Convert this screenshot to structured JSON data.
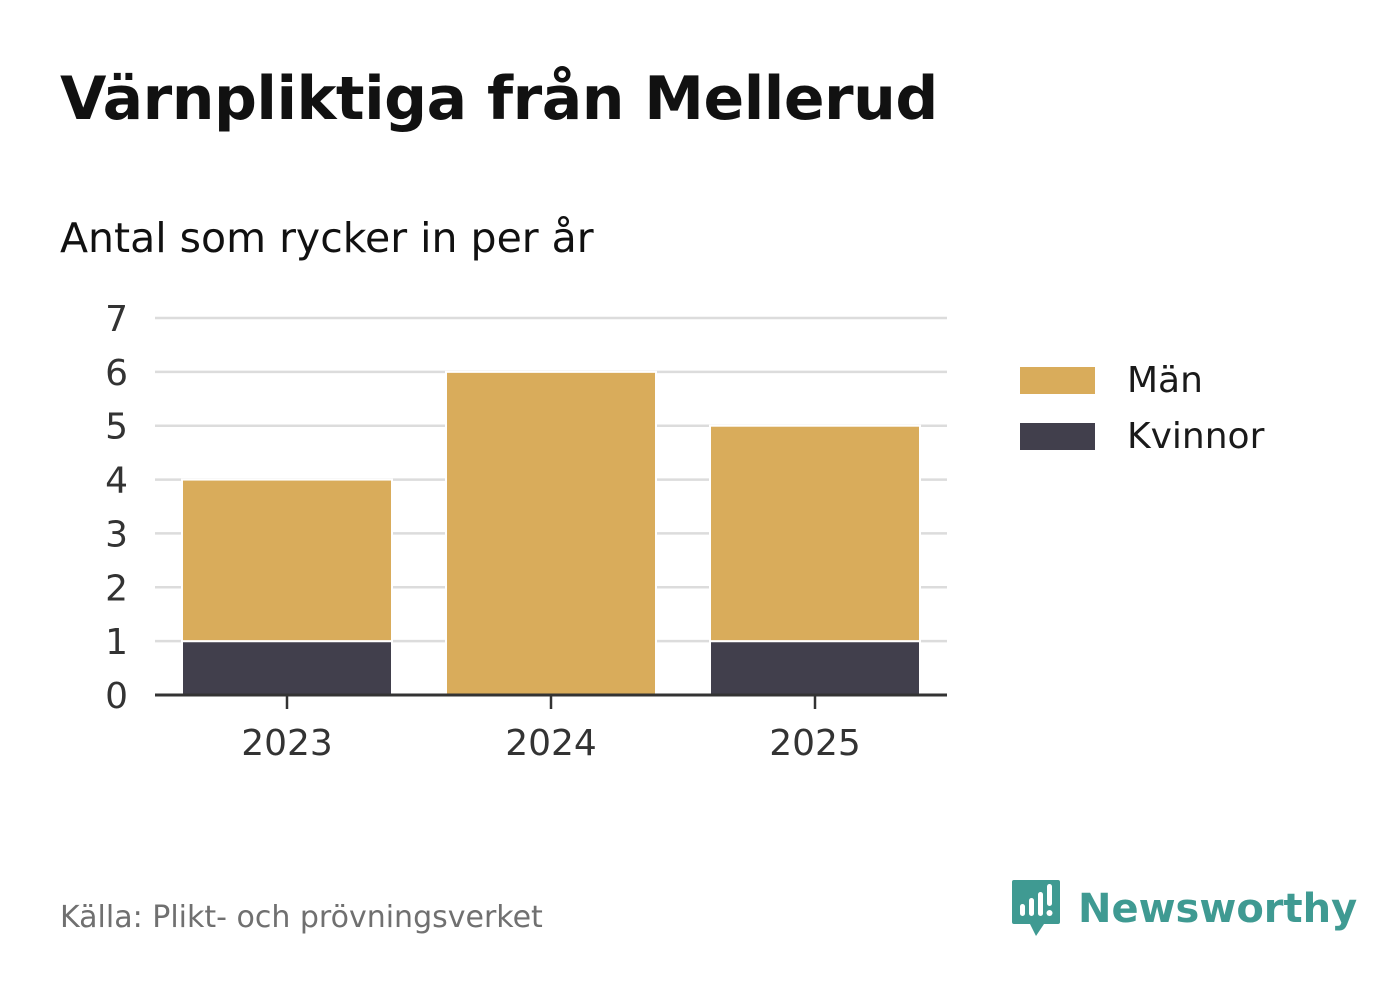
{
  "header": {
    "title": "Värnpliktiga från Mellerud",
    "subtitle": "Antal som rycker in per år"
  },
  "legend": {
    "items": [
      {
        "label": "Män",
        "color": "#d9ac5b"
      },
      {
        "label": "Kvinnor",
        "color": "#413f4c"
      }
    ]
  },
  "footer": {
    "source": "Källa: Plikt- och prövningsverket",
    "brand": "Newsworthy",
    "brand_color": "#3f9a92"
  },
  "chart_data": {
    "type": "bar",
    "stacked": true,
    "title": "Värnpliktiga från Mellerud",
    "subtitle": "Antal som rycker in per år",
    "xlabel": "",
    "ylabel": "",
    "categories": [
      "2023",
      "2024",
      "2025"
    ],
    "series": [
      {
        "name": "Kvinnor",
        "values": [
          1,
          0,
          1
        ],
        "color": "#413f4c"
      },
      {
        "name": "Män",
        "values": [
          3,
          6,
          4
        ],
        "color": "#d9ac5b"
      }
    ],
    "ylim": [
      0,
      7
    ],
    "yticks": [
      "0",
      "1",
      "2",
      "3",
      "4",
      "5",
      "6",
      "7"
    ],
    "grid": true,
    "legend_position": "right"
  }
}
